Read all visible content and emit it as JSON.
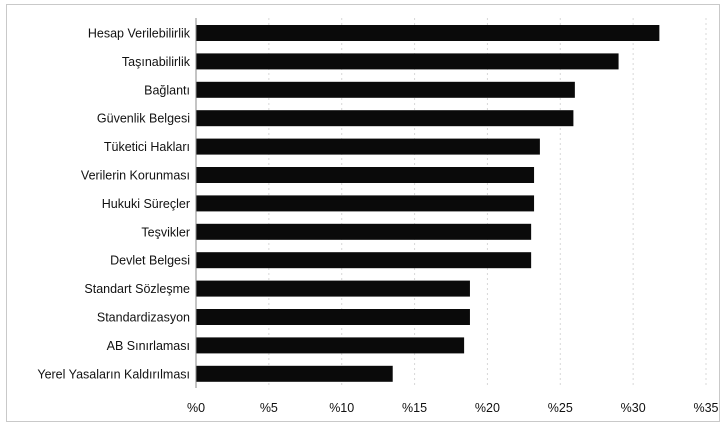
{
  "chart_data": {
    "type": "bar",
    "orientation": "horizontal",
    "title": "",
    "xlabel": "",
    "ylabel": "",
    "categories": [
      "Hesap Verilebilirlik",
      "Taşınabilirlik",
      "Bağlantı",
      "Güvenlik Belgesi",
      "Tüketici Hakları",
      "Verilerin Korunması",
      "Hukuki Süreçler",
      "Teşvikler",
      "Devlet Belgesi",
      "Standart Sözleşme",
      "Standardizasyon",
      "AB Sınırlaması",
      "Yerel Yasaların Kaldırılması"
    ],
    "values": [
      31.8,
      29.0,
      26.0,
      25.9,
      23.6,
      23.2,
      23.2,
      23.0,
      23.0,
      18.8,
      18.8,
      18.4,
      13.5
    ],
    "xlim": [
      0,
      35
    ],
    "x_ticks": [
      0,
      5,
      10,
      15,
      20,
      25,
      30,
      35
    ],
    "x_tick_labels": [
      "%0",
      "%5",
      "%10",
      "%15",
      "%20",
      "%25",
      "%30",
      "%35"
    ],
    "grid": true,
    "legend": "none",
    "bar_color": "#0a0a0a",
    "grid_color": "#d8d8d8"
  }
}
